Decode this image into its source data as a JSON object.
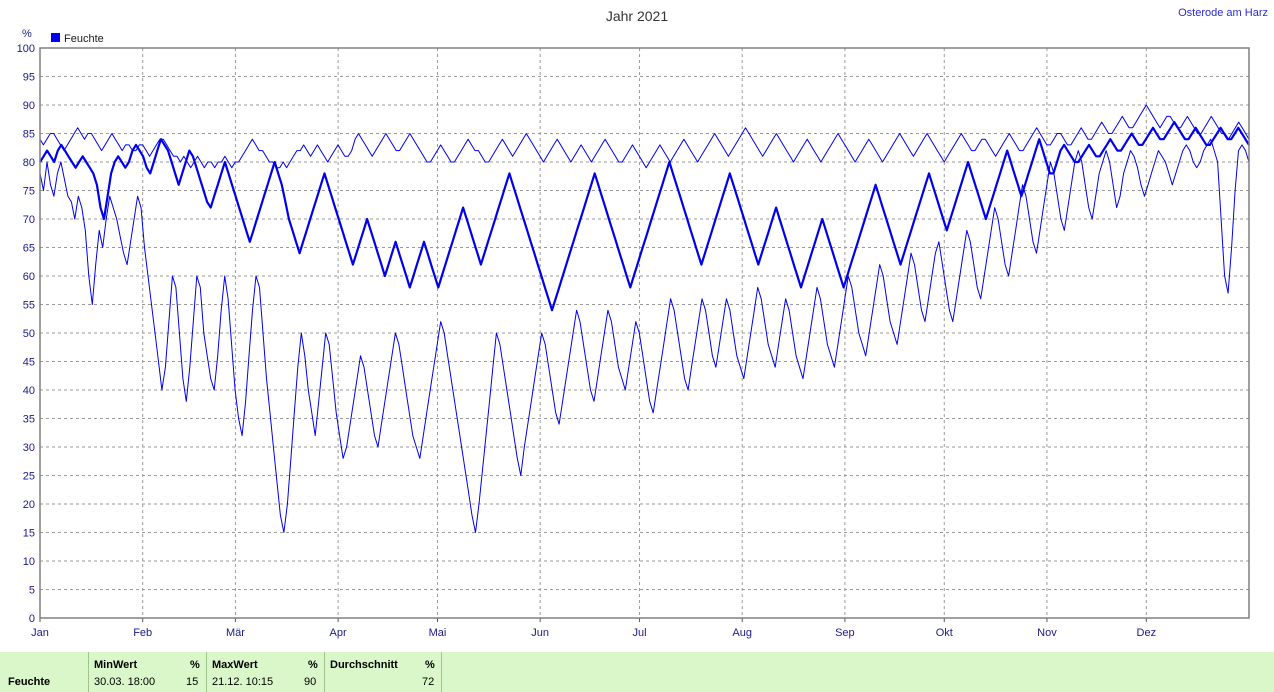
{
  "chart_data": {
    "type": "line",
    "title": "Jahr 2021",
    "station": "Osterode am Harz",
    "y_unit": "%",
    "ylim": [
      0,
      100
    ],
    "y_ticks": [
      0,
      5,
      10,
      15,
      20,
      25,
      30,
      35,
      40,
      45,
      50,
      55,
      60,
      65,
      70,
      75,
      80,
      85,
      90,
      95,
      100
    ],
    "x_tick_labels": [
      "Jan",
      "Feb",
      "Mär",
      "Apr",
      "Mai",
      "Jun",
      "Jul",
      "Aug",
      "Sep",
      "Okt",
      "Nov",
      "Dez"
    ],
    "grid": true,
    "legend": {
      "position": "top-left",
      "entries": [
        "Feuchte"
      ]
    },
    "series": [
      {
        "name": "Feuchte",
        "color": "#0000ee",
        "max": [
          84,
          83,
          84,
          85,
          85,
          84,
          83,
          82,
          83,
          84,
          85,
          86,
          85,
          84,
          85,
          85,
          84,
          83,
          82,
          83,
          84,
          85,
          84,
          83,
          82,
          83,
          83,
          82,
          82,
          83,
          83,
          82,
          81,
          82,
          83,
          84,
          84,
          83,
          82,
          81,
          81,
          80,
          81,
          80,
          79,
          80,
          81,
          80,
          79,
          80,
          80,
          79,
          80,
          80,
          81,
          80,
          79,
          80,
          80,
          81,
          82,
          83,
          84,
          83,
          82,
          82,
          81,
          80,
          80,
          79,
          79,
          80,
          79,
          80,
          81,
          82,
          82,
          83,
          82,
          81,
          82,
          83,
          82,
          81,
          80,
          81,
          82,
          83,
          82,
          81,
          81,
          82,
          84,
          85,
          84,
          83,
          82,
          81,
          82,
          83,
          84,
          85,
          84,
          83,
          82,
          82,
          83,
          84,
          85,
          84,
          83,
          82,
          81,
          80,
          80,
          81,
          82,
          83,
          82,
          81,
          80,
          80,
          81,
          82,
          83,
          84,
          83,
          82,
          82,
          81,
          80,
          80,
          81,
          82,
          83,
          84,
          83,
          82,
          81,
          82,
          83,
          84,
          85,
          84,
          83,
          82,
          81,
          80,
          81,
          82,
          83,
          84,
          83,
          82,
          81,
          80,
          81,
          82,
          83,
          82,
          81,
          80,
          81,
          82,
          83,
          84,
          83,
          82,
          81,
          80,
          80,
          81,
          82,
          83,
          82,
          81,
          80,
          79,
          80,
          81,
          82,
          83,
          82,
          81,
          80,
          81,
          82,
          83,
          84,
          83,
          82,
          81,
          80,
          81,
          82,
          83,
          84,
          85,
          84,
          83,
          82,
          81,
          82,
          83,
          84,
          85,
          86,
          85,
          84,
          83,
          82,
          81,
          82,
          83,
          84,
          85,
          84,
          83,
          82,
          81,
          80,
          81,
          82,
          83,
          84,
          83,
          82,
          81,
          80,
          81,
          82,
          83,
          84,
          85,
          84,
          83,
          82,
          81,
          80,
          81,
          82,
          83,
          84,
          83,
          82,
          81,
          80,
          81,
          82,
          83,
          84,
          85,
          84,
          83,
          82,
          81,
          82,
          83,
          84,
          85,
          84,
          83,
          82,
          81,
          80,
          81,
          82,
          83,
          84,
          85,
          84,
          83,
          82,
          82,
          83,
          84,
          84,
          83,
          82,
          81,
          82,
          83,
          84,
          85,
          84,
          83,
          82,
          82,
          83,
          84,
          85,
          86,
          85,
          84,
          83,
          83,
          84,
          85,
          85,
          84,
          83,
          83,
          84,
          85,
          86,
          85,
          84,
          84,
          85,
          86,
          87,
          86,
          85,
          85,
          86,
          87,
          88,
          87,
          86,
          86,
          87,
          88,
          89,
          90,
          89,
          88,
          87,
          86,
          87,
          88,
          88,
          87,
          86,
          86,
          87,
          88,
          87,
          86,
          85,
          85,
          86,
          87,
          88,
          87,
          86,
          85,
          85,
          84,
          85,
          86,
          87,
          86,
          85,
          84
        ],
        "mean": [
          80,
          81,
          82,
          81,
          80,
          82,
          83,
          82,
          81,
          80,
          79,
          80,
          81,
          80,
          79,
          78,
          76,
          72,
          70,
          74,
          78,
          80,
          81,
          80,
          79,
          80,
          82,
          83,
          82,
          81,
          79,
          78,
          80,
          82,
          84,
          83,
          82,
          80,
          78,
          76,
          78,
          80,
          82,
          81,
          79,
          77,
          75,
          73,
          72,
          74,
          76,
          78,
          80,
          78,
          76,
          74,
          72,
          70,
          68,
          66,
          68,
          70,
          72,
          74,
          76,
          78,
          80,
          78,
          76,
          73,
          70,
          68,
          66,
          64,
          66,
          68,
          70,
          72,
          74,
          76,
          78,
          76,
          74,
          72,
          70,
          68,
          66,
          64,
          62,
          64,
          66,
          68,
          70,
          68,
          66,
          64,
          62,
          60,
          62,
          64,
          66,
          64,
          62,
          60,
          58,
          60,
          62,
          64,
          66,
          64,
          62,
          60,
          58,
          60,
          62,
          64,
          66,
          68,
          70,
          72,
          70,
          68,
          66,
          64,
          62,
          64,
          66,
          68,
          70,
          72,
          74,
          76,
          78,
          76,
          74,
          72,
          70,
          68,
          66,
          64,
          62,
          60,
          58,
          56,
          54,
          56,
          58,
          60,
          62,
          64,
          66,
          68,
          70,
          72,
          74,
          76,
          78,
          76,
          74,
          72,
          70,
          68,
          66,
          64,
          62,
          60,
          58,
          60,
          62,
          64,
          66,
          68,
          70,
          72,
          74,
          76,
          78,
          80,
          78,
          76,
          74,
          72,
          70,
          68,
          66,
          64,
          62,
          64,
          66,
          68,
          70,
          72,
          74,
          76,
          78,
          76,
          74,
          72,
          70,
          68,
          66,
          64,
          62,
          64,
          66,
          68,
          70,
          72,
          70,
          68,
          66,
          64,
          62,
          60,
          58,
          60,
          62,
          64,
          66,
          68,
          70,
          68,
          66,
          64,
          62,
          60,
          58,
          60,
          62,
          64,
          66,
          68,
          70,
          72,
          74,
          76,
          74,
          72,
          70,
          68,
          66,
          64,
          62,
          64,
          66,
          68,
          70,
          72,
          74,
          76,
          78,
          76,
          74,
          72,
          70,
          68,
          70,
          72,
          74,
          76,
          78,
          80,
          78,
          76,
          74,
          72,
          70,
          72,
          74,
          76,
          78,
          80,
          82,
          80,
          78,
          76,
          74,
          76,
          78,
          80,
          82,
          84,
          82,
          80,
          78,
          78,
          80,
          82,
          83,
          82,
          81,
          80,
          80,
          81,
          82,
          83,
          82,
          81,
          81,
          82,
          83,
          84,
          83,
          82,
          82,
          83,
          84,
          85,
          84,
          83,
          83,
          84,
          85,
          86,
          85,
          84,
          84,
          85,
          86,
          87,
          86,
          85,
          84,
          84,
          85,
          86,
          85,
          84,
          83,
          83,
          84,
          85,
          86,
          85,
          84,
          84,
          85,
          86,
          85,
          84,
          83
        ],
        "min": [
          78,
          75,
          80,
          76,
          74,
          78,
          80,
          77,
          74,
          73,
          70,
          74,
          72,
          68,
          60,
          55,
          62,
          68,
          65,
          70,
          74,
          72,
          70,
          67,
          64,
          62,
          66,
          70,
          74,
          72,
          65,
          60,
          55,
          50,
          45,
          40,
          44,
          52,
          60,
          58,
          50,
          42,
          38,
          44,
          52,
          60,
          58,
          50,
          46,
          42,
          40,
          46,
          54,
          60,
          56,
          48,
          40,
          35,
          32,
          38,
          46,
          54,
          60,
          58,
          50,
          42,
          36,
          30,
          24,
          18,
          15,
          20,
          28,
          36,
          44,
          50,
          46,
          40,
          36,
          32,
          38,
          44,
          50,
          48,
          42,
          36,
          32,
          28,
          30,
          34,
          38,
          42,
          46,
          44,
          40,
          36,
          32,
          30,
          34,
          38,
          42,
          46,
          50,
          48,
          44,
          40,
          36,
          32,
          30,
          28,
          32,
          36,
          40,
          44,
          48,
          52,
          50,
          46,
          42,
          38,
          34,
          30,
          26,
          22,
          18,
          15,
          20,
          26,
          32,
          38,
          44,
          50,
          48,
          44,
          40,
          36,
          32,
          28,
          25,
          30,
          34,
          38,
          42,
          46,
          50,
          48,
          44,
          40,
          36,
          34,
          38,
          42,
          46,
          50,
          54,
          52,
          48,
          44,
          40,
          38,
          42,
          46,
          50,
          54,
          52,
          48,
          44,
          42,
          40,
          44,
          48,
          52,
          50,
          46,
          42,
          38,
          36,
          40,
          44,
          48,
          52,
          56,
          54,
          50,
          46,
          42,
          40,
          44,
          48,
          52,
          56,
          54,
          50,
          46,
          44,
          48,
          52,
          56,
          54,
          50,
          46,
          44,
          42,
          46,
          50,
          54,
          58,
          56,
          52,
          48,
          46,
          44,
          48,
          52,
          56,
          54,
          50,
          46,
          44,
          42,
          46,
          50,
          54,
          58,
          56,
          52,
          48,
          46,
          44,
          48,
          52,
          56,
          60,
          58,
          54,
          50,
          48,
          46,
          50,
          54,
          58,
          62,
          60,
          56,
          52,
          50,
          48,
          52,
          56,
          60,
          64,
          62,
          58,
          54,
          52,
          56,
          60,
          64,
          66,
          62,
          58,
          54,
          52,
          56,
          60,
          64,
          68,
          66,
          62,
          58,
          56,
          60,
          64,
          68,
          72,
          70,
          66,
          62,
          60,
          64,
          68,
          72,
          76,
          74,
          70,
          66,
          64,
          68,
          72,
          76,
          80,
          78,
          74,
          70,
          68,
          72,
          76,
          80,
          82,
          80,
          76,
          72,
          70,
          74,
          78,
          80,
          82,
          80,
          76,
          72,
          74,
          78,
          80,
          82,
          81,
          79,
          76,
          74,
          76,
          78,
          80,
          82,
          81,
          80,
          78,
          76,
          78,
          80,
          82,
          83,
          82,
          80,
          79,
          80,
          82,
          83,
          84,
          82,
          80,
          70,
          60,
          57,
          65,
          75,
          82,
          83,
          82,
          80
        ]
      }
    ]
  },
  "stats": {
    "row_label": "Feuchte",
    "min": {
      "header": "MinWert",
      "unit": "%",
      "time": "30.03.  18:00",
      "value": "15"
    },
    "max": {
      "header": "MaxWert",
      "unit": "%",
      "time": "21.12.  10:15",
      "value": "90"
    },
    "avg": {
      "header": "Durchschnitt",
      "unit": "%",
      "value": "72"
    }
  }
}
